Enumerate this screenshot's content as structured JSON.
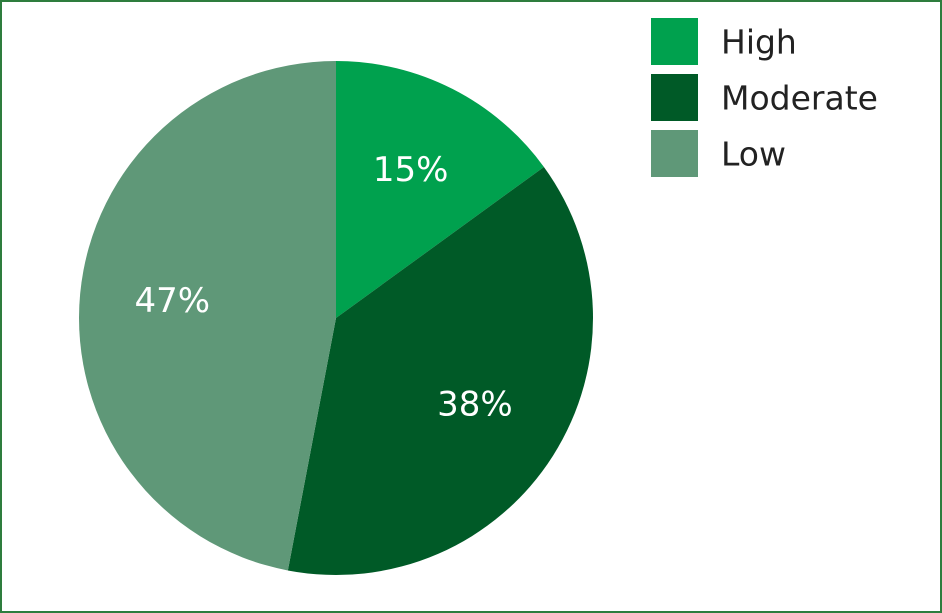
{
  "chart_data": {
    "type": "pie",
    "categories": [
      "High",
      "Moderate",
      "Low"
    ],
    "values": [
      15,
      38,
      47
    ],
    "value_labels": [
      "15%",
      "38%",
      "47%"
    ],
    "colors": [
      "#00a14e",
      "#005a27",
      "#5f9878"
    ],
    "legend": "top-right"
  }
}
